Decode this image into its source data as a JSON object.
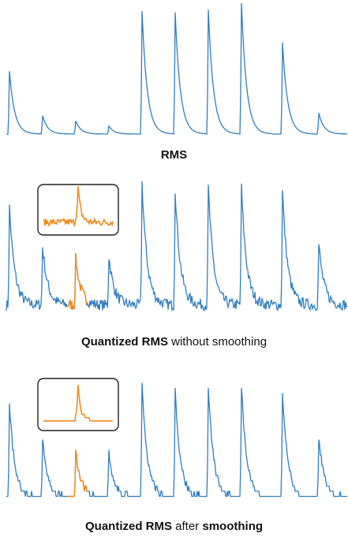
{
  "colors": {
    "signal": "#2f7fbf",
    "highlight": "#f08c1c",
    "inset_border": "#222222"
  },
  "chart_data": [
    {
      "type": "line",
      "title": "RMS",
      "peak_heights": [
        0.48,
        0.14,
        0.1,
        0.06,
        0.94,
        0.93,
        0.95,
        1.0,
        0.7,
        0.16
      ],
      "noise": "none",
      "inset": false
    },
    {
      "type": "line",
      "title_bold": "Quantized RMS",
      "title_rest": " without smoothing",
      "peak_heights": [
        0.8,
        0.48,
        0.38,
        0.4,
        1.0,
        0.95,
        0.96,
        0.96,
        0.93,
        0.5
      ],
      "noise": "high",
      "highlighted_peak_index": 2,
      "inset": true
    },
    {
      "type": "line",
      "title_bold": "Quantized RMS",
      "title_rest": " after smoothing",
      "title_bold2": "smoothing",
      "peak_heights": [
        0.82,
        0.52,
        0.42,
        0.4,
        1.0,
        0.95,
        0.99,
        0.99,
        0.93,
        0.53
      ],
      "noise": "quantized",
      "highlighted_peak_index": 2,
      "inset": true
    }
  ]
}
